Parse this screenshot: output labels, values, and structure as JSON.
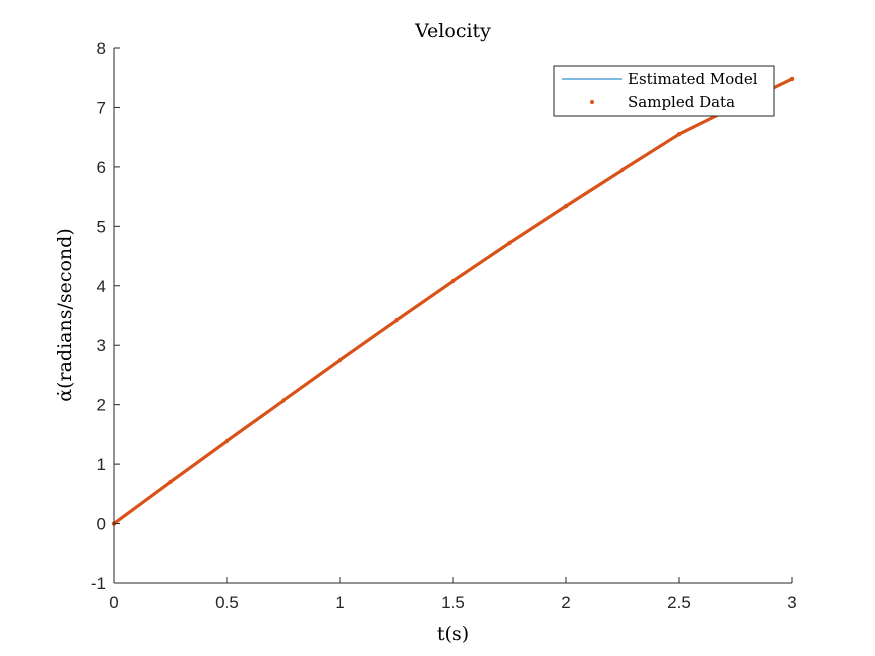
{
  "chart_data": {
    "type": "line",
    "title": "Velocity",
    "xlabel": "t(s)",
    "ylabel": "α̇(radians/second)",
    "xlim": [
      0,
      3
    ],
    "ylim": [
      -1,
      8
    ],
    "xticks": [
      0,
      0.5,
      1,
      1.5,
      2,
      2.5,
      3
    ],
    "xtick_labels": [
      "0",
      "0.5",
      "1",
      "1.5",
      "2",
      "2.5",
      "3"
    ],
    "yticks": [
      -1,
      0,
      1,
      2,
      3,
      4,
      5,
      6,
      7,
      8
    ],
    "ytick_labels": [
      "-1",
      "0",
      "1",
      "2",
      "3",
      "4",
      "5",
      "6",
      "7",
      "8"
    ],
    "grid": false,
    "legend_position": "top-right",
    "series": [
      {
        "name": "Estimated Model",
        "kind": "line",
        "color": "#0072BD",
        "x": [
          0,
          0.25,
          0.5,
          0.75,
          1,
          1.25,
          1.5,
          1.75,
          2,
          2.25,
          2.5,
          2.75,
          3
        ],
        "y": [
          0,
          0.7,
          1.39,
          2.07,
          2.75,
          3.42,
          4.08,
          4.72,
          5.34,
          5.95,
          6.55,
          7.02,
          7.48
        ]
      },
      {
        "name": "Sampled Data",
        "kind": "scatter",
        "color": "#D95319",
        "x": [
          0,
          0.25,
          0.5,
          0.75,
          1,
          1.25,
          1.5,
          1.75,
          2,
          2.25,
          2.5,
          2.75,
          3
        ],
        "y": [
          0,
          0.7,
          1.39,
          2.07,
          2.75,
          3.42,
          4.08,
          4.72,
          5.34,
          5.95,
          6.55,
          7.02,
          7.48
        ]
      }
    ]
  }
}
